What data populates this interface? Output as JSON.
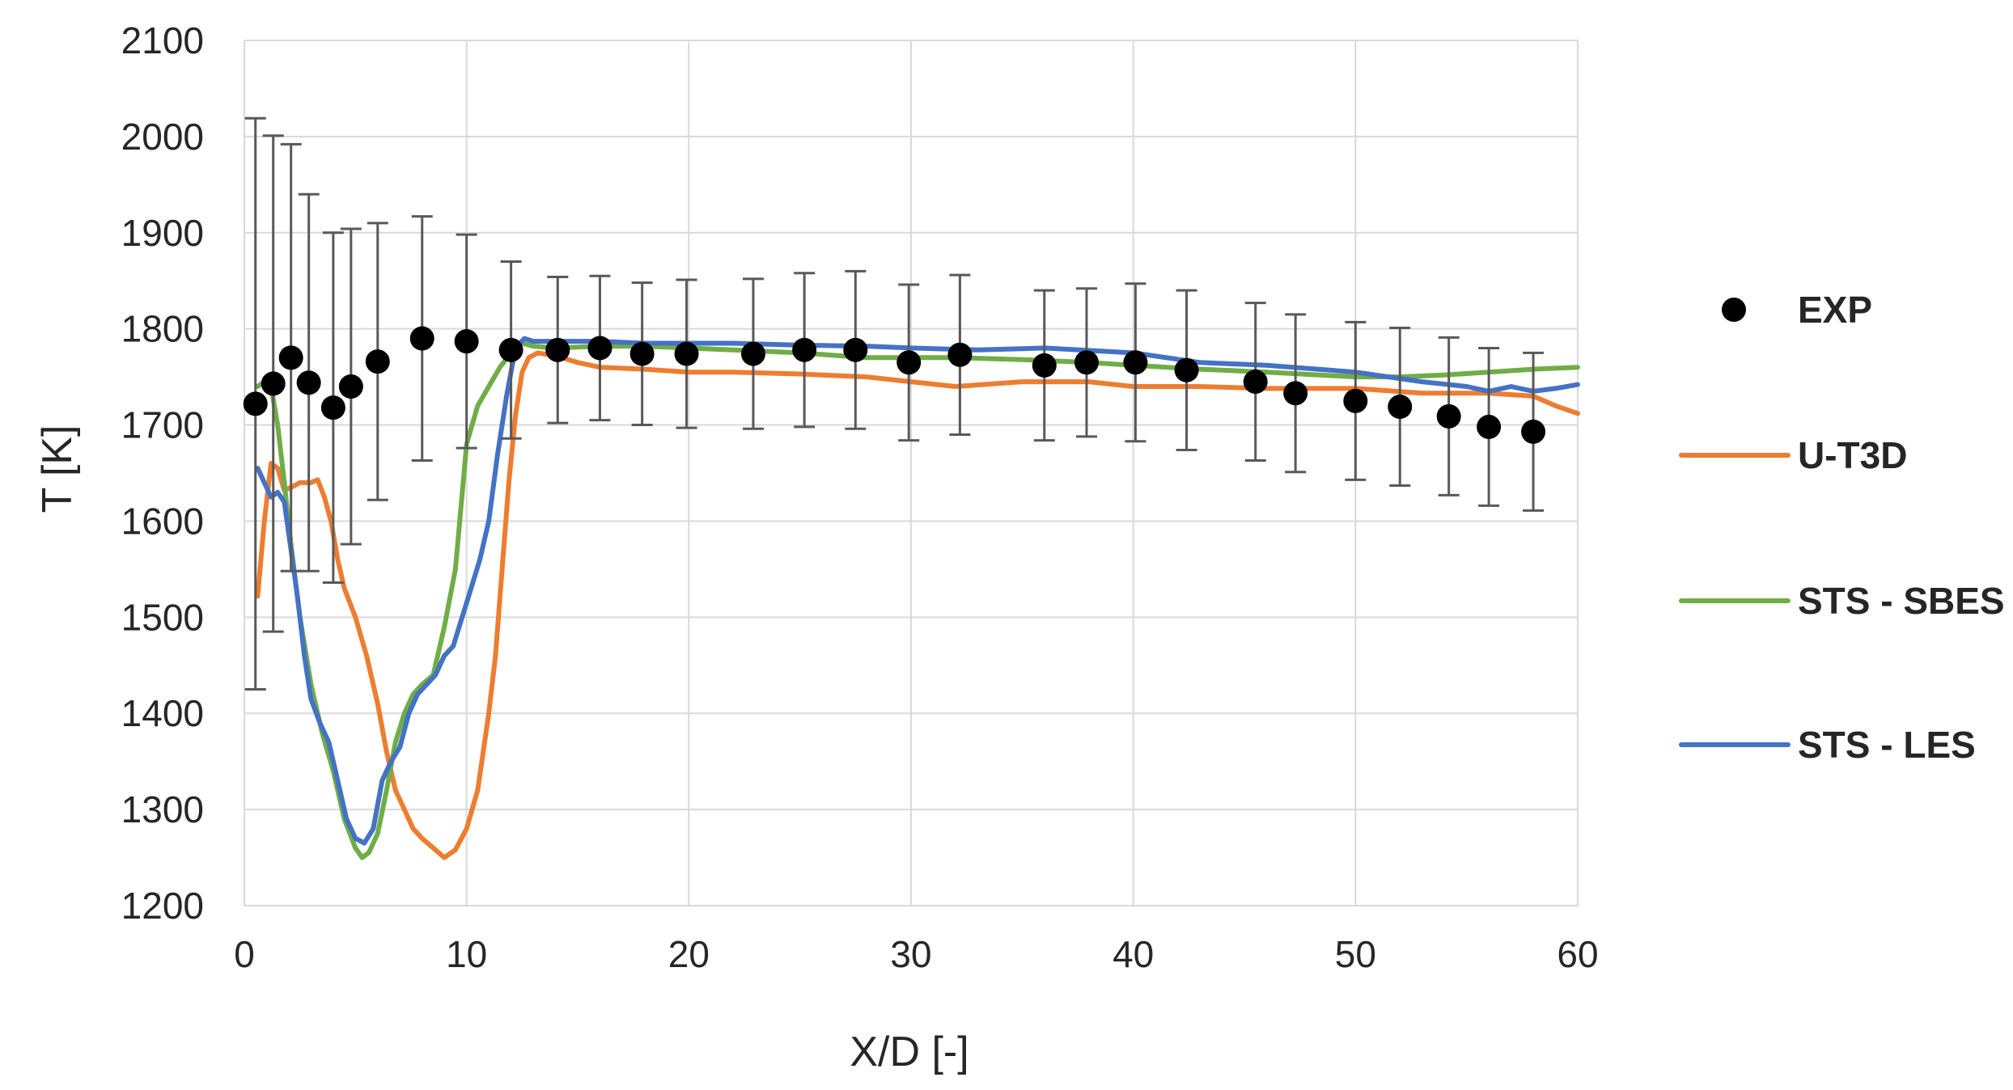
{
  "chart_data": {
    "type": "line",
    "title": "",
    "xlabel": "X/D [-]",
    "ylabel": "T [K]",
    "xlim": [
      0,
      60
    ],
    "ylim": [
      1200,
      2100
    ],
    "xticks": [
      "0",
      "10",
      "20",
      "30",
      "40",
      "50",
      "60"
    ],
    "yticks": [
      "1200",
      "1300",
      "1400",
      "1500",
      "1600",
      "1700",
      "1800",
      "1900",
      "2000",
      "2100"
    ],
    "grid": true,
    "legend_position": "right",
    "series": [
      {
        "name": "EXP",
        "kind": "scatter",
        "color": "#000000",
        "x": [
          0.5,
          1.3,
          2.1,
          2.9,
          4.0,
          4.8,
          6.0,
          8.0,
          10.0,
          12.0,
          14.1,
          16.0,
          17.9,
          19.9,
          22.9,
          25.2,
          27.5,
          29.9,
          32.2,
          36.0,
          37.9,
          40.1,
          42.4,
          45.5,
          47.3,
          50.0,
          52.0,
          54.2,
          56.0,
          58.0
        ],
        "y": [
          1722,
          1743,
          1770,
          1744,
          1718,
          1740,
          1766,
          1790,
          1787,
          1778,
          1778,
          1780,
          1774,
          1774,
          1774,
          1778,
          1778,
          1765,
          1773,
          1762,
          1765,
          1765,
          1757,
          1745,
          1733,
          1725,
          1719,
          1709,
          1698,
          1693
        ],
        "err": [
          297,
          258,
          222,
          196,
          182,
          164,
          144,
          127,
          111,
          92,
          76,
          75,
          74,
          77,
          78,
          80,
          82,
          81,
          83,
          78,
          77,
          82,
          83,
          82,
          82,
          82,
          82,
          82,
          82,
          82
        ]
      },
      {
        "name": "U-T3D",
        "kind": "line",
        "color": "#ED7D31",
        "x": [
          0.6,
          0.9,
          1.2,
          1.5,
          1.8,
          2.1,
          2.5,
          3.0,
          3.3,
          3.6,
          3.9,
          4.2,
          4.5,
          5.0,
          5.5,
          6.0,
          6.4,
          6.8,
          7.2,
          7.6,
          8.0,
          8.5,
          9.0,
          9.5,
          10.0,
          10.5,
          11.0,
          11.3,
          11.6,
          11.9,
          12.2,
          12.5,
          12.8,
          13.2,
          14.0,
          15.0,
          16.0,
          18.0,
          20.0,
          22.0,
          25.0,
          28.0,
          30.0,
          32.0,
          35.0,
          38.0,
          40.0,
          43.0,
          46.0,
          50.0,
          53.0,
          56.0,
          58.0,
          59.0,
          60.0
        ],
        "y": [
          1522,
          1600,
          1660,
          1655,
          1632,
          1635,
          1640,
          1640,
          1643,
          1625,
          1600,
          1560,
          1530,
          1500,
          1460,
          1410,
          1360,
          1320,
          1300,
          1280,
          1270,
          1260,
          1250,
          1258,
          1280,
          1320,
          1400,
          1460,
          1550,
          1640,
          1710,
          1755,
          1770,
          1775,
          1772,
          1765,
          1760,
          1758,
          1755,
          1755,
          1753,
          1750,
          1745,
          1740,
          1745,
          1745,
          1740,
          1740,
          1738,
          1738,
          1733,
          1733,
          1730,
          1720,
          1712
        ]
      },
      {
        "name": "STS - SBES",
        "kind": "line",
        "color": "#70AD47",
        "x": [
          0.6,
          0.9,
          1.2,
          1.5,
          1.8,
          2.1,
          2.5,
          3.0,
          3.5,
          4.0,
          4.5,
          5.0,
          5.3,
          5.6,
          6.0,
          6.4,
          6.8,
          7.2,
          7.6,
          8.0,
          8.5,
          9.0,
          9.5,
          10.0,
          10.5,
          11.0,
          11.5,
          12.0,
          12.5,
          13.0,
          14.0,
          16.0,
          18.0,
          20.0,
          22.0,
          25.0,
          28.0,
          30.0,
          32.0,
          35.0,
          38.0,
          40.0,
          43.0,
          46.0,
          50.0,
          52.0,
          54.0,
          56.0,
          58.0,
          60.0
        ],
        "y": [
          1740,
          1745,
          1740,
          1700,
          1640,
          1575,
          1500,
          1430,
          1380,
          1340,
          1290,
          1260,
          1250,
          1255,
          1275,
          1320,
          1370,
          1400,
          1420,
          1430,
          1440,
          1490,
          1550,
          1680,
          1720,
          1740,
          1760,
          1775,
          1785,
          1782,
          1780,
          1782,
          1782,
          1780,
          1778,
          1775,
          1770,
          1770,
          1770,
          1768,
          1765,
          1762,
          1758,
          1755,
          1750,
          1750,
          1752,
          1755,
          1758,
          1760
        ]
      },
      {
        "name": "STS - LES",
        "kind": "line",
        "color": "#4472C4",
        "x": [
          0.6,
          0.9,
          1.2,
          1.5,
          1.8,
          2.1,
          2.4,
          2.7,
          3.0,
          3.4,
          3.8,
          4.2,
          4.6,
          5.0,
          5.4,
          5.8,
          6.2,
          6.6,
          7.0,
          7.4,
          7.8,
          8.2,
          8.6,
          9.0,
          9.4,
          9.8,
          10.2,
          10.6,
          11.0,
          11.4,
          11.8,
          12.2,
          12.6,
          13.0,
          14.0,
          16.0,
          18.0,
          20.0,
          22.0,
          25.0,
          28.0,
          30.0,
          33.0,
          36.0,
          40.0,
          43.0,
          46.0,
          50.0,
          53.0,
          55.0,
          56.0,
          57.0,
          58.0,
          59.0,
          60.0
        ],
        "y": [
          1655,
          1640,
          1625,
          1630,
          1620,
          1570,
          1520,
          1460,
          1415,
          1390,
          1370,
          1330,
          1290,
          1270,
          1265,
          1280,
          1330,
          1350,
          1365,
          1400,
          1420,
          1430,
          1440,
          1460,
          1470,
          1500,
          1530,
          1560,
          1600,
          1670,
          1730,
          1780,
          1790,
          1787,
          1787,
          1787,
          1785,
          1785,
          1785,
          1783,
          1782,
          1780,
          1778,
          1780,
          1775,
          1765,
          1762,
          1755,
          1745,
          1740,
          1735,
          1740,
          1735,
          1738,
          1742
        ]
      }
    ]
  }
}
